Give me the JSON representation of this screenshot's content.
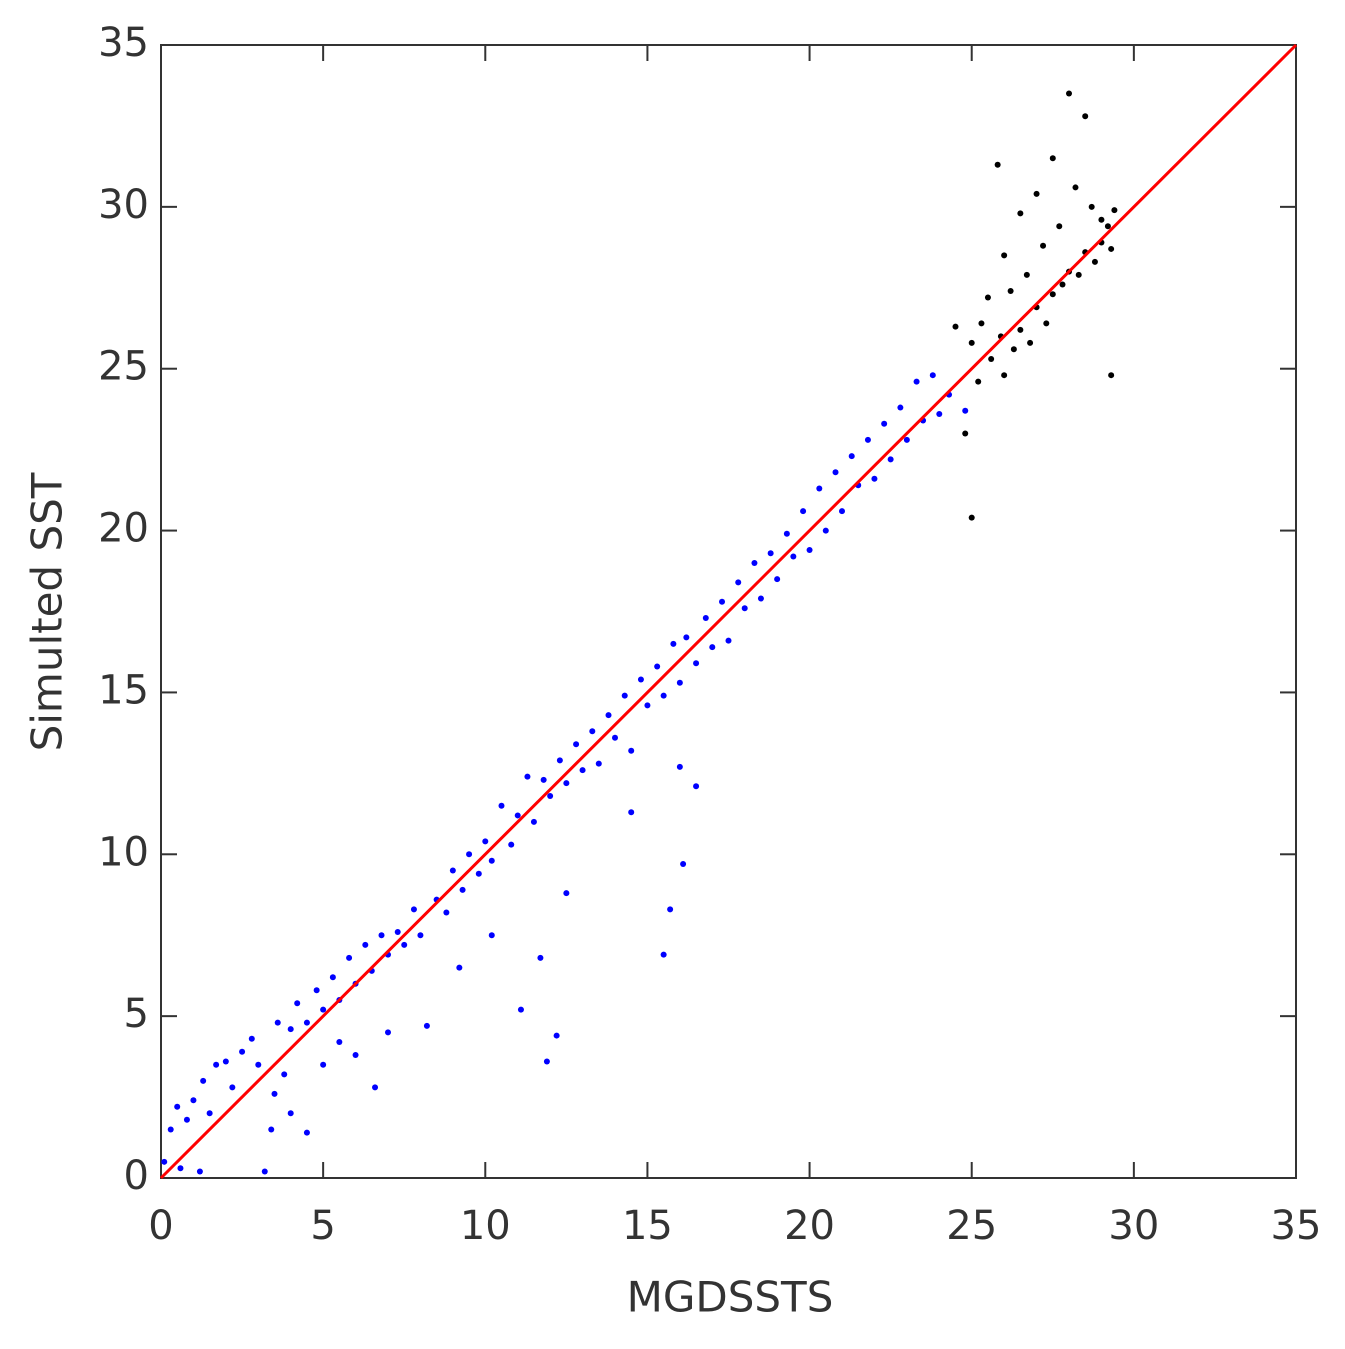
{
  "chart_data": {
    "type": "scatter",
    "x_label": "MGDSSTS",
    "y_label": "Simulted SST",
    "xlim": [
      0,
      35
    ],
    "ylim": [
      0,
      35
    ],
    "xticks": [
      0,
      5,
      10,
      15,
      20,
      25,
      30,
      35
    ],
    "yticks": [
      0,
      5,
      10,
      15,
      20,
      25,
      30,
      35
    ],
    "series": [
      {
        "color": "#0000ff",
        "mode": "points",
        "x": [
          0.1,
          0.3,
          0.5,
          0.6,
          0.8,
          1.0,
          1.2,
          1.3,
          1.5,
          1.7,
          2.0,
          2.2,
          2.5,
          2.8,
          3.0,
          3.2,
          3.4,
          3.5,
          3.6,
          3.8,
          4.0,
          4.0,
          4.2,
          4.5,
          4.5,
          4.8,
          5.0,
          5.0,
          5.3,
          5.5,
          5.5,
          5.8,
          6.0,
          6.0,
          6.3,
          6.5,
          6.6,
          6.8,
          7.0,
          7.0,
          7.3,
          7.5,
          7.8,
          8.0,
          8.2,
          8.5,
          8.8,
          9.0,
          9.2,
          9.3,
          9.5,
          9.8,
          10.0,
          10.2,
          10.2,
          10.5,
          10.8,
          11.0,
          11.1,
          11.3,
          11.5,
          11.7,
          11.8,
          11.9,
          12.0,
          12.2,
          12.3,
          12.5,
          12.5,
          12.8,
          13.0,
          13.3,
          13.5,
          13.8,
          14.0,
          14.3,
          14.5,
          14.5,
          14.8,
          15.0,
          15.3,
          15.5,
          15.5,
          15.7,
          15.8,
          16.0,
          16.0,
          16.1,
          16.2,
          16.5,
          16.5,
          16.8,
          17.0,
          17.3,
          17.5,
          17.8,
          18.0,
          18.3,
          18.5,
          18.8,
          19.0,
          19.3,
          19.5,
          19.8,
          20.0,
          20.3,
          20.5,
          20.8,
          21.0,
          21.3,
          21.5,
          21.8,
          22.0,
          22.3,
          22.5,
          22.8,
          23.0,
          23.3,
          23.5,
          23.8,
          24.0,
          24.3,
          24.8
        ],
        "values": [
          0.5,
          1.5,
          2.2,
          0.3,
          1.8,
          2.4,
          0.2,
          3.0,
          2.0,
          3.5,
          3.6,
          2.8,
          3.9,
          4.3,
          3.5,
          0.2,
          1.5,
          2.6,
          4.8,
          3.2,
          4.6,
          2.0,
          5.4,
          4.8,
          1.4,
          5.8,
          3.5,
          5.2,
          6.2,
          5.5,
          4.2,
          6.8,
          6.0,
          3.8,
          7.2,
          6.4,
          2.8,
          7.5,
          6.9,
          4.5,
          7.6,
          7.2,
          8.3,
          7.5,
          4.7,
          8.6,
          8.2,
          9.5,
          6.5,
          8.9,
          10.0,
          9.4,
          10.4,
          9.8,
          7.5,
          11.5,
          10.3,
          11.2,
          5.2,
          12.4,
          11.0,
          6.8,
          12.3,
          3.6,
          11.8,
          4.4,
          12.9,
          8.8,
          12.2,
          13.4,
          12.6,
          13.8,
          12.8,
          14.3,
          13.6,
          14.9,
          13.2,
          11.3,
          15.4,
          14.6,
          15.8,
          6.9,
          14.9,
          8.3,
          16.5,
          15.3,
          12.7,
          9.7,
          16.7,
          12.1,
          15.9,
          17.3,
          16.4,
          17.8,
          16.6,
          18.4,
          17.6,
          19.0,
          17.9,
          19.3,
          18.5,
          19.9,
          19.2,
          20.6,
          19.4,
          21.3,
          20.0,
          21.8,
          20.6,
          22.3,
          21.4,
          22.8,
          21.6,
          23.3,
          22.2,
          23.8,
          22.8,
          24.6,
          23.4,
          24.8,
          23.6,
          24.2,
          23.7
        ]
      },
      {
        "color": "#000000",
        "mode": "points",
        "x": [
          25.0,
          25.2,
          25.3,
          25.5,
          25.6,
          25.8,
          25.9,
          26.0,
          26.0,
          26.2,
          26.3,
          26.5,
          26.5,
          26.7,
          26.8,
          27.0,
          27.0,
          27.2,
          27.3,
          27.5,
          27.5,
          27.7,
          27.8,
          28.0,
          28.0,
          28.2,
          28.3,
          28.5,
          28.5,
          28.7,
          28.8,
          29.0,
          29.0,
          29.2,
          29.3,
          29.4,
          29.3,
          25.0,
          24.5,
          24.8
        ],
        "values": [
          25.8,
          24.6,
          26.4,
          27.2,
          25.3,
          31.3,
          26.0,
          28.5,
          24.8,
          27.4,
          25.6,
          29.8,
          26.2,
          27.9,
          25.8,
          30.4,
          26.9,
          28.8,
          26.4,
          31.5,
          27.3,
          29.4,
          27.6,
          33.5,
          28.0,
          30.6,
          27.9,
          32.8,
          28.6,
          30.0,
          28.3,
          29.6,
          28.9,
          29.4,
          28.7,
          29.9,
          24.8,
          20.4,
          26.3,
          23.0
        ]
      },
      {
        "color": "#ff0000",
        "mode": "line",
        "x": [
          0,
          35
        ],
        "values": [
          0,
          35
        ]
      }
    ]
  }
}
